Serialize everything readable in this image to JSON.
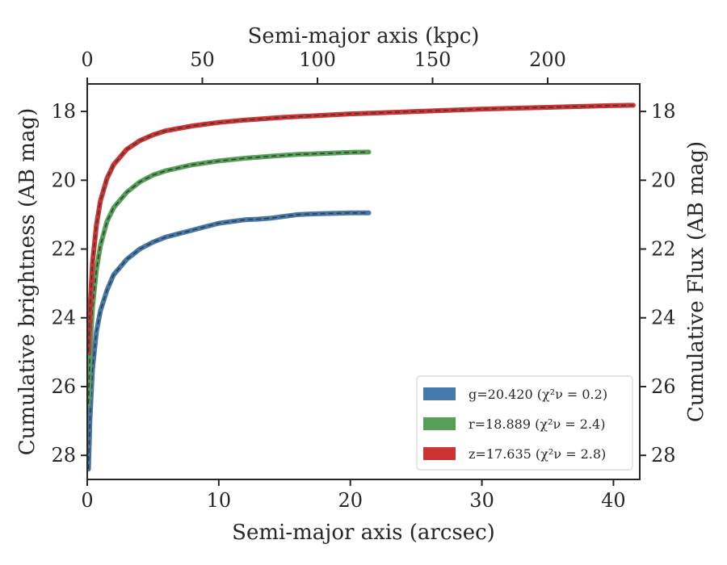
{
  "chart_data": {
    "type": "line",
    "xlabel": "Semi-major axis (arcsec)",
    "x2label": "Semi-major axis (kpc)",
    "ylabel": "Cumulative brightness (AB mag)",
    "y2label": "Cumulative Flux (AB mag)",
    "xlim": [
      0,
      42
    ],
    "x2lim": [
      0,
      240
    ],
    "ylim": [
      28.7,
      17.2
    ],
    "y_inverted": true,
    "xticks": [
      0,
      10,
      20,
      30,
      40
    ],
    "x2ticks": [
      0,
      50,
      100,
      150,
      200
    ],
    "yticks": [
      18,
      20,
      22,
      24,
      26,
      28
    ],
    "grid": false,
    "legend_placement": "lower-right",
    "series": [
      {
        "name": "g",
        "legend_label": "g=20.420 (χ²ν = 0.2)",
        "color": "#4477aa",
        "x": [
          0.1,
          0.2,
          0.4,
          0.7,
          1.0,
          1.5,
          2.0,
          3.0,
          4.0,
          5.0,
          6.0,
          7.0,
          8.0,
          9.0,
          10.0,
          11.0,
          12.0,
          13.0,
          14.0,
          15.0,
          16.0,
          17.0,
          18.0,
          19.0,
          20.0,
          21.4
        ],
        "y": [
          28.4,
          27.0,
          25.5,
          24.4,
          23.8,
          23.2,
          22.75,
          22.3,
          22.0,
          21.8,
          21.65,
          21.55,
          21.45,
          21.35,
          21.25,
          21.2,
          21.15,
          21.13,
          21.1,
          21.05,
          21.0,
          20.98,
          20.97,
          20.96,
          20.95,
          20.95
        ]
      },
      {
        "name": "r",
        "legend_label": "r=18.889 (χ²ν = 2.4)",
        "color": "#55a056",
        "x": [
          0.1,
          0.2,
          0.4,
          0.7,
          1.0,
          1.5,
          2.0,
          3.0,
          4.0,
          5.0,
          6.0,
          8.0,
          10.0,
          12.0,
          14.0,
          16.0,
          18.0,
          20.0,
          21.4
        ],
        "y": [
          26.5,
          25.0,
          23.7,
          22.6,
          21.9,
          21.2,
          20.8,
          20.35,
          20.05,
          19.85,
          19.72,
          19.55,
          19.44,
          19.36,
          19.3,
          19.25,
          19.22,
          19.19,
          19.18
        ]
      },
      {
        "name": "z",
        "legend_label": "z=17.635 (χ²ν = 2.8)",
        "color": "#cc3333",
        "x": [
          0.1,
          0.2,
          0.4,
          0.7,
          1.0,
          1.5,
          2.0,
          3.0,
          4.0,
          5.0,
          6.0,
          8.0,
          10.0,
          12.0,
          15.0,
          20.0,
          25.0,
          30.0,
          35.0,
          40.0,
          41.5
        ],
        "y": [
          25.0,
          23.8,
          22.4,
          21.3,
          20.6,
          19.95,
          19.55,
          19.1,
          18.85,
          18.68,
          18.56,
          18.42,
          18.32,
          18.25,
          18.17,
          18.07,
          18.0,
          17.93,
          17.88,
          17.83,
          17.82
        ]
      }
    ]
  }
}
